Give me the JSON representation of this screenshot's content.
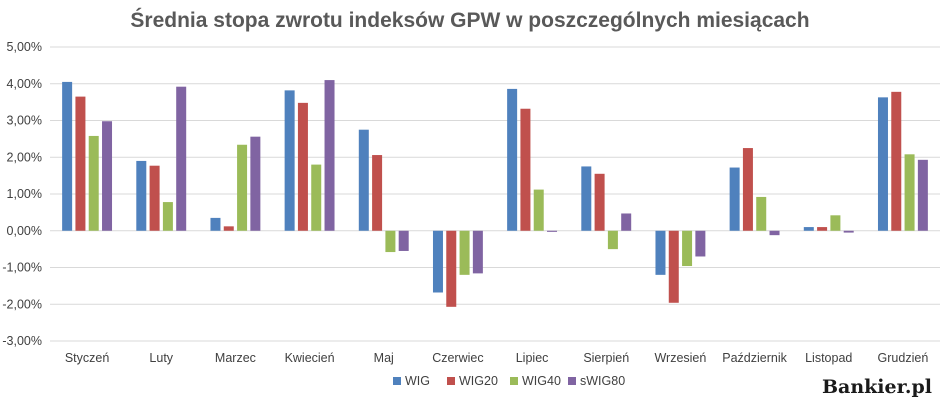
{
  "chart_data": {
    "type": "bar",
    "title": "Średnia stopa zwrotu indeksów GPW w poszczególnych miesiącach",
    "categories": [
      "Styczeń",
      "Luty",
      "Marzec",
      "Kwiecień",
      "Maj",
      "Czerwiec",
      "Lipiec",
      "Sierpień",
      "Wrzesień",
      "Październik",
      "Listopad",
      "Grudzień"
    ],
    "series": [
      {
        "name": "WIG",
        "color": "#4f81bd",
        "values": [
          4.05,
          1.9,
          0.35,
          3.82,
          2.75,
          -1.68,
          3.86,
          1.75,
          -1.2,
          1.72,
          0.1,
          3.63
        ]
      },
      {
        "name": "WIG20",
        "color": "#c0504d",
        "values": [
          3.65,
          1.77,
          0.12,
          3.48,
          2.06,
          -2.07,
          3.32,
          1.55,
          -1.96,
          2.25,
          0.1,
          3.78
        ]
      },
      {
        "name": "WIG40",
        "color": "#9bbb59",
        "values": [
          2.58,
          0.78,
          2.34,
          1.8,
          -0.58,
          -1.2,
          1.12,
          -0.5,
          -0.96,
          0.92,
          0.42,
          2.08
        ]
      },
      {
        "name": "sWIG80",
        "color": "#8064a2",
        "values": [
          2.98,
          3.92,
          2.56,
          4.1,
          -0.55,
          -1.16,
          -0.03,
          0.47,
          -0.7,
          -0.12,
          -0.05,
          1.93
        ]
      }
    ],
    "yticks": [
      "5,00%",
      "4,00%",
      "3,00%",
      "2,00%",
      "1,00%",
      "0,00%",
      "-1,00%",
      "-2,00%",
      "-3,00%"
    ],
    "ylim": [
      -3,
      5
    ],
    "grid": true,
    "legend": "bottom"
  },
  "brand": "Bankier.pl"
}
